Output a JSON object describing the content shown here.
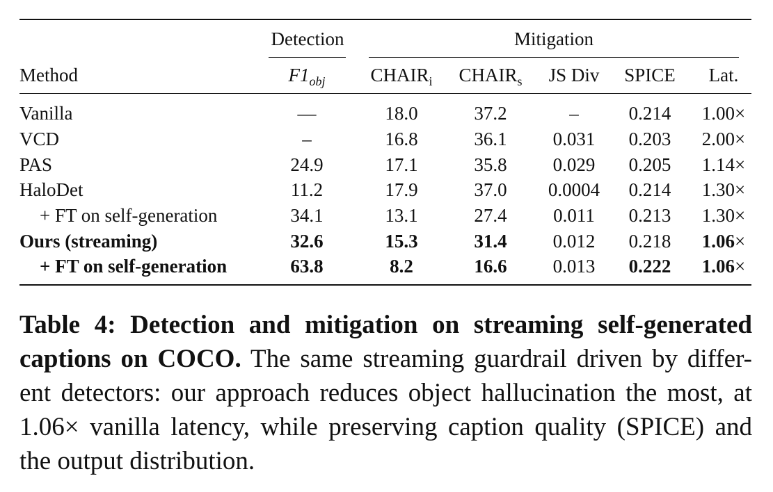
{
  "table": {
    "header_group": {
      "detection": "Detection",
      "mitigation": "Mitigation"
    },
    "header": {
      "method": "Method",
      "f1_base": "F1",
      "f1_sub": "obj",
      "chair_i_base": "CHAIR",
      "chair_i_sub": "i",
      "chair_s_base": "CHAIR",
      "chair_s_sub": "s",
      "js_div": "JS Div",
      "spice": "SPICE",
      "lat": "Lat."
    },
    "rows": [
      {
        "method": "Vanilla",
        "f1": "—",
        "chair_i": "18.0",
        "chair_s": "37.2",
        "js": "–",
        "spice": "0.214",
        "lat": "1.00×"
      },
      {
        "method": "VCD",
        "f1": "–",
        "chair_i": "16.8",
        "chair_s": "36.1",
        "js": "0.031",
        "spice": "0.203",
        "lat": "2.00×"
      },
      {
        "method": "PAS",
        "f1": "24.9",
        "chair_i": "17.1",
        "chair_s": "35.8",
        "js": "0.029",
        "spice": "0.205",
        "lat": "1.14×"
      },
      {
        "method": "HaloDet",
        "f1": "11.2",
        "chair_i": "17.9",
        "chair_s": "37.0",
        "js": "0.0004",
        "spice": "0.214",
        "lat": "1.30×"
      },
      {
        "method": "+ FT on self-generation",
        "f1": "34.1",
        "chair_i": "13.1",
        "chair_s": "27.4",
        "js": "0.011",
        "spice": "0.213",
        "lat": "1.30×"
      },
      {
        "method": "Ours (streaming)",
        "f1": "32.6",
        "chair_i": "15.3",
        "chair_s": "31.4",
        "js": "0.012",
        "spice": "0.218",
        "lat_num": "1.06",
        "lat_x": "×"
      },
      {
        "method": "+ FT on self-generation",
        "f1": "63.8",
        "chair_i": "8.2",
        "chair_s": "16.6",
        "js": "0.013",
        "spice": "0.222",
        "lat_num": "1.06",
        "lat_x": "×"
      }
    ]
  },
  "caption": {
    "label": "Table 4: Detection and mitigation on streaming self-generated captions on COCO.",
    "text_1": "The same streaming guardrail driven by differ-",
    "text_2": "ent detectors: our approach reduces object hallucination the most, at",
    "latency_value": "1.06",
    "times": "×",
    "text_3": "vanilla latency, while preserving caption quality (SPICE) and the output distribution."
  }
}
